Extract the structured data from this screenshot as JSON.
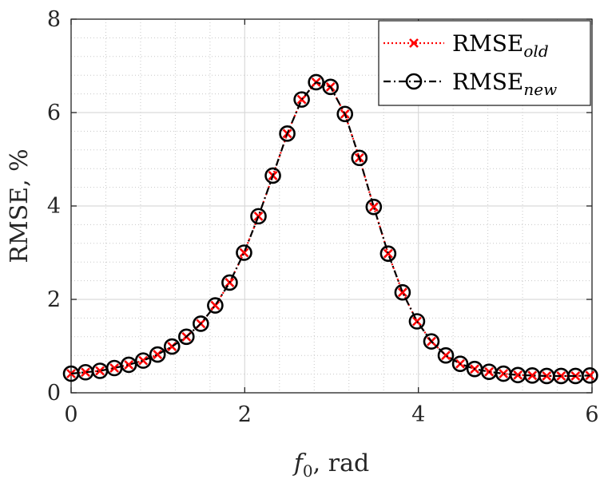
{
  "chart_data": {
    "type": "line",
    "xlabel": {
      "main": "f",
      "sub": "0",
      "suffix": ", rad"
    },
    "ylabel": "RMSE, %",
    "xlim": [
      0,
      6
    ],
    "ylim": [
      0,
      8
    ],
    "xticks": [
      0,
      2,
      4,
      6
    ],
    "yticks": [
      0,
      2,
      4,
      6,
      8
    ],
    "xtick_labels": [
      "0",
      "2",
      "4",
      "6"
    ],
    "ytick_labels": [
      "0",
      "2",
      "4",
      "6",
      "8"
    ],
    "minor_xstep": 0.4,
    "minor_ystep": 0.4,
    "grid": true,
    "legend_position": "top-right",
    "x": [
      0,
      0.166,
      0.332,
      0.498,
      0.664,
      0.83,
      0.996,
      1.162,
      1.328,
      1.494,
      1.66,
      1.826,
      1.992,
      2.158,
      2.324,
      2.49,
      2.656,
      2.822,
      2.988,
      3.154,
      3.32,
      3.486,
      3.652,
      3.818,
      3.984,
      4.15,
      4.316,
      4.482,
      4.648,
      4.814,
      4.98,
      5.146,
      5.312,
      5.478,
      5.644,
      5.81,
      5.976
    ],
    "series": [
      {
        "name": "RMSE",
        "name_sub": "old",
        "color": "#ff0000",
        "line_style": "dotted",
        "marker": "x",
        "values": [
          0.41,
          0.44,
          0.47,
          0.53,
          0.6,
          0.69,
          0.82,
          0.99,
          1.2,
          1.48,
          1.87,
          2.36,
          3.0,
          3.78,
          4.65,
          5.55,
          6.28,
          6.65,
          6.55,
          5.97,
          5.03,
          3.98,
          2.98,
          2.15,
          1.53,
          1.1,
          0.8,
          0.62,
          0.51,
          0.45,
          0.41,
          0.38,
          0.37,
          0.36,
          0.36,
          0.36,
          0.37
        ]
      },
      {
        "name": "RMSE",
        "name_sub": "new",
        "color": "#000000",
        "line_style": "dashdot",
        "marker": "circle",
        "values": [
          0.41,
          0.44,
          0.47,
          0.53,
          0.6,
          0.69,
          0.82,
          0.99,
          1.2,
          1.48,
          1.87,
          2.36,
          3.0,
          3.78,
          4.65,
          5.55,
          6.28,
          6.65,
          6.55,
          5.97,
          5.03,
          3.98,
          2.98,
          2.15,
          1.53,
          1.1,
          0.8,
          0.62,
          0.51,
          0.45,
          0.41,
          0.38,
          0.37,
          0.36,
          0.36,
          0.36,
          0.37
        ]
      }
    ]
  }
}
